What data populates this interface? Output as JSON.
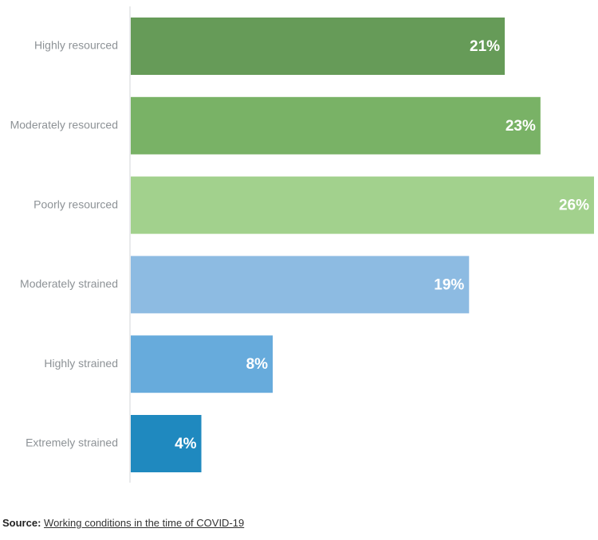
{
  "chart_data": {
    "type": "bar",
    "orientation": "horizontal",
    "title": "",
    "xlabel": "",
    "ylabel": "",
    "categories": [
      "Highly resourced",
      "Moderately resourced",
      "Poorly resourced",
      "Moderately strained",
      "Highly strained",
      "Extremely strained"
    ],
    "values": [
      21,
      23,
      26,
      19,
      8,
      4
    ],
    "value_labels": [
      "21%",
      "23%",
      "26%",
      "19%",
      "8%",
      "4%"
    ],
    "colors": [
      "#669b58",
      "#79b266",
      "#a2d18d",
      "#8dbbe2",
      "#67abdc",
      "#1f89bf"
    ],
    "xlim": [
      0,
      26
    ],
    "grid": false
  },
  "colors": {
    "axis_line": "#e2e4e6",
    "category_text": "#8d9296",
    "value_text": "#ffffff"
  },
  "source": {
    "label": "Source:",
    "link_text": "Working conditions in the time of COVID-19"
  }
}
